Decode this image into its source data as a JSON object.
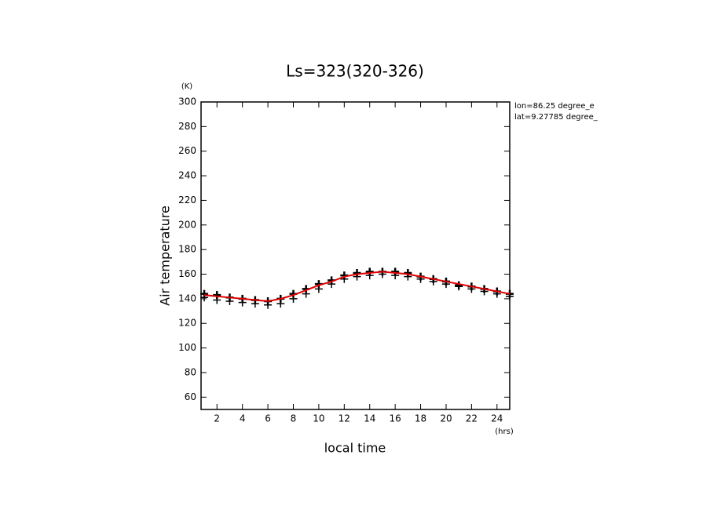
{
  "chart_data": {
    "type": "scatter-line",
    "title": "Ls=323(320-326)",
    "y_label": "Air temperature",
    "y_unit": "(K)",
    "x_label": "local time",
    "x_unit": "(hrs)",
    "annotations": [
      "lon=86.25 degree_e",
      "lat=9.27785 degree_"
    ],
    "xlim": [
      0.75,
      25
    ],
    "ylim": [
      50,
      300
    ],
    "xticks": [
      2,
      4,
      6,
      8,
      10,
      12,
      14,
      16,
      18,
      20,
      22,
      24
    ],
    "yticks": [
      60,
      80,
      100,
      120,
      140,
      160,
      180,
      200,
      220,
      240,
      260,
      280,
      300
    ],
    "x": [
      1,
      2,
      3,
      4,
      5,
      6,
      7,
      8,
      9,
      10,
      11,
      12,
      13,
      14,
      15,
      16,
      17,
      18,
      19,
      20,
      21,
      22,
      23,
      24,
      25
    ],
    "series": [
      {
        "kind": "marker",
        "color": "#000000",
        "values": [
          144,
          143,
          141,
          140,
          139,
          138,
          140,
          144,
          148,
          152,
          155,
          159,
          161,
          162,
          162,
          162,
          161,
          158,
          156,
          154,
          151,
          150,
          148,
          146,
          144
        ]
      },
      {
        "kind": "marker",
        "color": "#000000",
        "values": [
          141,
          139,
          138,
          137,
          136,
          135,
          136,
          140,
          144,
          148,
          152,
          156,
          158,
          159,
          160,
          159,
          158,
          156,
          154,
          152,
          150,
          148,
          146,
          144,
          142
        ]
      },
      {
        "kind": "line",
        "color": "#e00000",
        "values": [
          143,
          142,
          141,
          140,
          139,
          138,
          140,
          143,
          147,
          151,
          154,
          158,
          160,
          161,
          162,
          161,
          160,
          158,
          156,
          154,
          152,
          150,
          148,
          146,
          144
        ]
      }
    ]
  }
}
